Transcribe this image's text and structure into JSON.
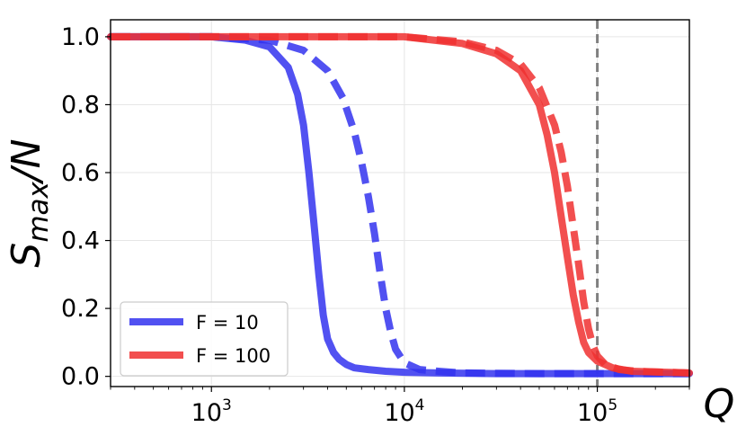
{
  "chart_data": {
    "type": "line",
    "title": "",
    "xlabel": "Q",
    "ylabel": {
      "base": "S",
      "sub": "max",
      "rest": "/N"
    },
    "xscale": "log",
    "xlim": [
      300,
      300000
    ],
    "ylim": [
      -0.03,
      1.05
    ],
    "grid": true,
    "legend_placement": "bottom-left",
    "x_ticks": [
      {
        "value": 1000,
        "base": "10",
        "exp": "3"
      },
      {
        "value": 10000,
        "base": "10",
        "exp": "4"
      },
      {
        "value": 100000,
        "base": "10",
        "exp": "5"
      }
    ],
    "y_ticks": [
      {
        "value": 0.0,
        "label": "0.0"
      },
      {
        "value": 0.2,
        "label": "0.2"
      },
      {
        "value": 0.4,
        "label": "0.4"
      },
      {
        "value": 0.6,
        "label": "0.6"
      },
      {
        "value": 0.8,
        "label": "0.8"
      },
      {
        "value": 1.0,
        "label": "1.0"
      }
    ],
    "vline": {
      "x": 100000,
      "color": "#808080",
      "style": "dashed"
    },
    "series": [
      {
        "name": "F = 10",
        "color": "#3333ee",
        "dash": false,
        "x": [
          300,
          1000,
          1500,
          2000,
          2500,
          2800,
          3000,
          3200,
          3400,
          3600,
          3800,
          4000,
          4300,
          4600,
          5000,
          5500,
          6500,
          8000,
          10000,
          15000,
          30000,
          100000,
          300000
        ],
        "y": [
          1.0,
          1.0,
          0.99,
          0.97,
          0.91,
          0.83,
          0.74,
          0.6,
          0.45,
          0.3,
          0.18,
          0.11,
          0.07,
          0.05,
          0.035,
          0.025,
          0.02,
          0.015,
          0.012,
          0.01,
          0.008,
          0.008,
          0.008
        ]
      },
      {
        "name": "",
        "color": "#3333ee",
        "dash": true,
        "x": [
          300,
          1000,
          2000,
          3000,
          4000,
          4800,
          5500,
          6000,
          6500,
          7000,
          7500,
          8000,
          8500,
          9000,
          10000,
          12000,
          15000,
          20000,
          50000,
          100000,
          300000
        ],
        "y": [
          1.0,
          1.0,
          0.99,
          0.96,
          0.9,
          0.82,
          0.72,
          0.63,
          0.53,
          0.42,
          0.3,
          0.2,
          0.13,
          0.08,
          0.04,
          0.02,
          0.015,
          0.01,
          0.008,
          0.008,
          0.008
        ]
      },
      {
        "name": "F = 100",
        "color": "#f03030",
        "dash": false,
        "x": [
          300,
          10000,
          20000,
          30000,
          40000,
          50000,
          55000,
          60000,
          65000,
          70000,
          75000,
          80000,
          85000,
          90000,
          100000,
          120000,
          150000,
          300000
        ],
        "y": [
          1.0,
          1.0,
          0.98,
          0.95,
          0.9,
          0.8,
          0.71,
          0.6,
          0.47,
          0.35,
          0.24,
          0.16,
          0.1,
          0.07,
          0.045,
          0.025,
          0.015,
          0.01
        ]
      },
      {
        "name": "",
        "color": "#f03030",
        "dash": true,
        "x": [
          300,
          10000,
          20000,
          30000,
          40000,
          50000,
          60000,
          65000,
          70000,
          75000,
          80000,
          85000,
          90000,
          95000,
          100000,
          110000,
          130000,
          160000,
          300000
        ],
        "y": [
          1.0,
          1.0,
          0.985,
          0.96,
          0.92,
          0.85,
          0.74,
          0.66,
          0.56,
          0.44,
          0.33,
          0.22,
          0.14,
          0.09,
          0.06,
          0.035,
          0.02,
          0.015,
          0.01
        ]
      }
    ]
  }
}
